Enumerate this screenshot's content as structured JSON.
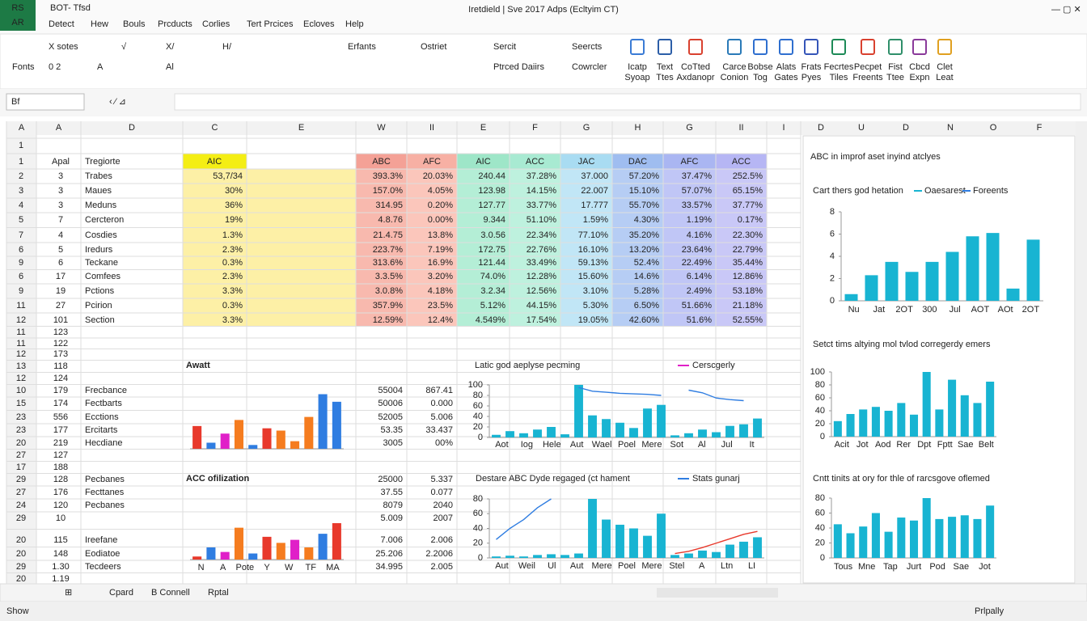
{
  "app": {
    "icon_top": "RS",
    "icon_bottom": "AR",
    "quick": "BOT- Tfsd",
    "title": "Iretdield | Sve 2017 Adps (Ecltyim CT)"
  },
  "menu": [
    "Detect",
    "Hew",
    "Bouls",
    "Prcducts",
    "Corlies",
    "Tert Prcices",
    "Ecloves",
    "Help"
  ],
  "ribbon": {
    "row1": [
      "X sotes",
      "√",
      "X/",
      "H/",
      "Erfants",
      "Ostriet",
      "Sercit",
      "Seercts"
    ],
    "row2": [
      "Fonts",
      "0 2",
      "A",
      "Al",
      "Ptrced Daiirs",
      "Cowrcler"
    ],
    "big": [
      [
        "Icatp",
        "Syoap"
      ],
      [
        "Text",
        "Ttes"
      ],
      [
        "CoTted",
        "Axdanopr"
      ],
      [
        "Carce",
        "Conion"
      ],
      [
        "Bobse",
        "Tog"
      ],
      [
        "Alats",
        "Gates"
      ],
      [
        "Frats",
        "Pyes"
      ],
      [
        "Fecrtes",
        "Tiles"
      ],
      [
        "Pecpet",
        "Freents"
      ],
      [
        "Fist",
        "Ttee"
      ],
      [
        "Cbcd",
        "Expn"
      ],
      [
        "Clet",
        "Leat"
      ]
    ]
  },
  "formula": {
    "name_box": "Bf"
  },
  "columns": [
    "A",
    "A",
    "D",
    "C",
    "E",
    "W",
    "II",
    "E",
    "F",
    "G",
    "H",
    "G",
    "II",
    "I"
  ],
  "right_columns": [
    "D",
    "U",
    "D",
    "N",
    "O",
    "F"
  ],
  "rows": [
    {
      "n": "1"
    },
    {
      "n": "1",
      "a": "Apal",
      "b": "Tregiorte",
      "c": "AIC",
      "v": [
        "ABC",
        "AFC",
        "AIC",
        "ACC",
        "JAC",
        "DAC",
        "AFC",
        "ACC"
      ]
    },
    {
      "n": "2",
      "a": "3",
      "b": "Trabes",
      "c": "53,7/34",
      "v": [
        "393.3%",
        "20.03%",
        "240.44",
        "37.28%",
        "37.000",
        "57.20%",
        "37.47%",
        "252.5%"
      ]
    },
    {
      "n": "3",
      "a": "3",
      "b": "Maues",
      "c": "30%",
      "v": [
        "157.0%",
        "4.05%",
        "123.98",
        "14.15%",
        "22.007",
        "15.10%",
        "57.07%",
        "65.15%"
      ]
    },
    {
      "n": "4",
      "a": "3",
      "b": "Meduns",
      "c": "36%",
      "v": [
        "314.95",
        "0.20%",
        "127.77",
        "33.77%",
        "17.777",
        "55.70%",
        "33.57%",
        "37.77%"
      ]
    },
    {
      "n": "5",
      "a": "7",
      "b": "Cercteron",
      "c": "19%",
      "v": [
        "4.8.76",
        "0.00%",
        "9.344",
        "51.10%",
        "1.59%",
        "4.30%",
        "1.19%",
        "0.17%"
      ]
    },
    {
      "n": "7",
      "a": "4",
      "b": "Cosdies",
      "c": "1.3%",
      "v": [
        "21.4.75",
        "13.8%",
        "3.0.56",
        "22.34%",
        "77.10%",
        "35.20%",
        "4.16%",
        "22.30%"
      ]
    },
    {
      "n": "6",
      "a": "5",
      "b": "Iredurs",
      "c": "2.3%",
      "v": [
        "223.7%",
        "7.19%",
        "172.75",
        "22.76%",
        "16.10%",
        "13.20%",
        "23.64%",
        "22.79%"
      ]
    },
    {
      "n": "9",
      "a": "6",
      "b": "Teckane",
      "c": "0.3%",
      "v": [
        "313.6%",
        "16.9%",
        "121.44",
        "33.49%",
        "59.13%",
        "52.4%",
        "22.49%",
        "35.44%"
      ]
    },
    {
      "n": "6",
      "a": "17",
      "b": "Comfees",
      "c": "2.3%",
      "v": [
        "3.3.5%",
        "3.20%",
        "74.0%",
        "12.28%",
        "15.60%",
        "14.6%",
        "6.14%",
        "12.86%"
      ]
    },
    {
      "n": "9",
      "a": "19",
      "b": "Pctions",
      "c": "3.3%",
      "v": [
        "3.0.8%",
        "4.18%",
        "3.2.34",
        "12.56%",
        "3.10%",
        "5.28%",
        "2.49%",
        "53.18%"
      ]
    },
    {
      "n": "11",
      "a": "27",
      "b": "Pcirion",
      "c": "0.3%",
      "v": [
        "357.9%",
        "23.5%",
        "5.12%",
        "44.15%",
        "5.30%",
        "6.50%",
        "51.66%",
        "21.18%"
      ]
    },
    {
      "n": "12",
      "a": "101",
      "b": "Section",
      "c": "3.3%",
      "v": [
        "12.59%",
        "12.4%",
        "4.549%",
        "17.54%",
        "19.05%",
        "42.60%",
        "51.6%",
        "52.55%"
      ]
    },
    {
      "n": "11",
      "a": "123"
    },
    {
      "n": "11",
      "a": "122"
    },
    {
      "n": "12",
      "a": "173"
    },
    {
      "n": "13",
      "a": "118"
    },
    {
      "n": "12",
      "a": "124"
    },
    {
      "n": "10",
      "a": "179",
      "b": "Frecbance",
      "w": "55004",
      "ii": "867.41"
    },
    {
      "n": "15",
      "a": "174",
      "b": "Fectbarts",
      "w": "50006",
      "ii": "0.000"
    },
    {
      "n": "23",
      "a": "556",
      "b": "Ecctions",
      "w": "52005",
      "ii": "5.006"
    },
    {
      "n": "23",
      "a": "177",
      "b": "Ercitarts",
      "w": "53.35",
      "ii": "33.437"
    },
    {
      "n": "20",
      "a": "219",
      "b": "Hecdiane",
      "w": "3005",
      "ii": "00%"
    },
    {
      "n": "27",
      "a": "127"
    },
    {
      "n": "17",
      "a": "188"
    },
    {
      "n": "29",
      "a": "128",
      "b": "Pecbanes",
      "w": "25000",
      "ii": "5.337"
    },
    {
      "n": "27",
      "a": "176",
      "b": "Fecttanes",
      "w": "37.55",
      "ii": "0.077"
    },
    {
      "n": "24",
      "a": "120",
      "b": "Pecbanes",
      "w": "8079",
      "ii": "2040"
    },
    {
      "n": "29",
      "a": "10",
      "w": "5.009",
      "ii": "2007"
    },
    {
      "n": "20",
      "a": "115",
      "b": "Ireefane",
      "w": "7.006",
      "ii": "2.006"
    },
    {
      "n": "20",
      "a": "148",
      "b": "Eodiatoe",
      "w": "25.206",
      "ii": "2.2006"
    },
    {
      "n": "29",
      "a": "1.30",
      "b": "Tecdeers",
      "w": "34.995",
      "ii": "2.005"
    },
    {
      "n": "20",
      "a": "1.19"
    }
  ],
  "panel_title": "ABC in improf aset inyind atclyes",
  "charts": [
    {
      "type": "bar",
      "title": "Awatt",
      "ylim": [
        0,
        80
      ],
      "values": [
        30,
        8,
        20,
        38,
        5,
        27,
        24,
        10,
        42,
        72,
        62
      ],
      "colors": [
        "#e8392c",
        "#2f7de1",
        "#e020c8",
        "#f57c1f",
        "#2f7de1",
        "#e8392c",
        "#f57c1f",
        "#f57c1f",
        "#f57c1f",
        "#2f7de1",
        "#2f7de1"
      ]
    },
    {
      "type": "bar",
      "title": "ACC ofilization",
      "ylim": [
        0,
        80
      ],
      "values": [
        4,
        16,
        10,
        42,
        8,
        30,
        22,
        26,
        16,
        34,
        48
      ],
      "colors": [
        "#e8392c",
        "#2f7de1",
        "#e020c8",
        "#f57c1f",
        "#2f7de1",
        "#e8392c",
        "#f57c1f",
        "#e020c8",
        "#f57c1f",
        "#2f7de1",
        "#e8392c"
      ],
      "x_labels": [
        "N",
        "A",
        "Pote",
        "Y",
        "W",
        "TF",
        "MA"
      ]
    },
    {
      "type": "bar",
      "title": "Latic god aeplyse pecming",
      "legend": "Cerscgerly",
      "ylim": [
        0,
        100
      ],
      "yticks": [
        0,
        20,
        40,
        60,
        80,
        100
      ],
      "color": "#18b4d2",
      "values": [
        5,
        12,
        8,
        15,
        20,
        6,
        100,
        42,
        35,
        28,
        18,
        55,
        62,
        4,
        8,
        15,
        10,
        22,
        25,
        36
      ],
      "line": [
        null,
        null,
        null,
        null,
        null,
        null,
        95,
        88,
        86,
        84,
        83,
        82,
        80,
        null,
        90,
        85,
        75,
        72,
        70,
        null
      ],
      "x_labels": [
        "Aot",
        "Iog",
        "Hele",
        "Aut",
        "Wael",
        "Poel",
        "Mere",
        "Sot",
        "Al",
        "Jul",
        "It"
      ]
    },
    {
      "type": "bar",
      "title": "Destare ABC Dyde regaged (ct hament",
      "legend": "Stats gunarj",
      "ylim": [
        0,
        80
      ],
      "yticks": [
        0,
        20,
        40,
        60,
        80
      ],
      "color": "#18b4d2",
      "values": [
        2,
        3,
        2,
        4,
        5,
        4,
        6,
        80,
        52,
        45,
        40,
        30,
        60,
        4,
        6,
        10,
        8,
        18,
        22,
        28
      ],
      "line": [
        25,
        40,
        52,
        68,
        80,
        null,
        null,
        null,
        null,
        null,
        null,
        null,
        null,
        null,
        null,
        null,
        null,
        null,
        null,
        null
      ],
      "line2": [
        null,
        null,
        null,
        null,
        null,
        null,
        null,
        null,
        null,
        null,
        null,
        null,
        null,
        6,
        9,
        14,
        20,
        26,
        32,
        36
      ],
      "x_labels": [
        "Aut",
        "Weil",
        "Ul",
        "Aut",
        "Mere",
        "Poel",
        "Mere",
        "Stel",
        "A",
        "Ltn",
        "LI"
      ]
    },
    {
      "type": "bar",
      "title": "Cart thers god hetation",
      "series_names": [
        "Oaesarest",
        "Foreents"
      ],
      "ylim": [
        0,
        8
      ],
      "yticks": [
        0,
        2,
        4,
        6,
        8
      ],
      "color": "#18b4d2",
      "values": [
        0.6,
        2.3,
        3.5,
        2.6,
        3.5,
        4.4,
        5.8,
        6.1,
        1.1,
        5.5
      ],
      "x_labels": [
        "Nu",
        "Jat",
        "2OT",
        "300",
        "Jul",
        "AOT",
        "AOt",
        "2OT"
      ]
    },
    {
      "type": "bar",
      "title": "Setct tims altying mol tvlod corregerdy emers",
      "ylim": [
        0,
        100
      ],
      "yticks": [
        0,
        20,
        40,
        60,
        80,
        100
      ],
      "color": "#18b4d2",
      "values": [
        24,
        35,
        42,
        46,
        40,
        52,
        34,
        100,
        42,
        88,
        64,
        52,
        85
      ],
      "x_labels": [
        "Acit",
        "Jot",
        "Aod",
        "Rer",
        "Dpt",
        "Fptt",
        "Sae",
        "Belt"
      ]
    },
    {
      "type": "bar",
      "title": "Cntt tinits at ory for thle of rarcsgove oflemed",
      "ylim": [
        0,
        80
      ],
      "yticks": [
        0,
        20,
        40,
        60,
        80
      ],
      "color": "#18b4d2",
      "values": [
        45,
        33,
        42,
        60,
        35,
        54,
        50,
        80,
        52,
        55,
        57,
        52,
        70
      ],
      "x_labels": [
        "Tous",
        "Mne",
        "Tap",
        "Jurt",
        "Pod",
        "Sae",
        "Jot"
      ]
    }
  ],
  "sheet_tabs": [
    "Cpard",
    "B Connell",
    "Rptal"
  ],
  "status": [
    "Show",
    "Prlpally"
  ]
}
